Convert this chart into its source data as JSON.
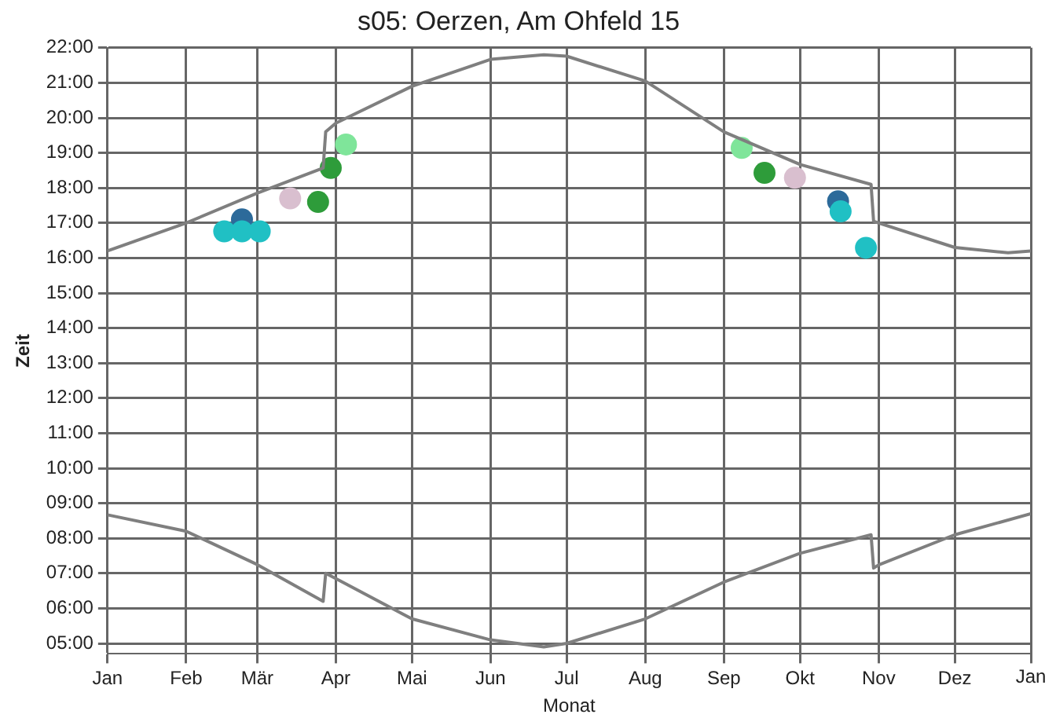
{
  "chart_data": {
    "type": "line",
    "title": "s05: Oerzen, Am Ohfeld 15",
    "xlabel": "Monat",
    "ylabel": "Zeit",
    "grid": true,
    "legend": false,
    "annotations": [
      "Jan"
    ],
    "xlim": [
      "--01-01",
      "--12-31"
    ],
    "xticks": [
      {
        "value": "--01-01",
        "label": "Jan"
      },
      {
        "value": "--02-01",
        "label": "Feb"
      },
      {
        "value": "--03-01",
        "label": "Mär"
      },
      {
        "value": "--04-01",
        "label": "Apr"
      },
      {
        "value": "--05-01",
        "label": "Mai"
      },
      {
        "value": "--06-01",
        "label": "Jun"
      },
      {
        "value": "--07-01",
        "label": "Jul"
      },
      {
        "value": "--08-01",
        "label": "Aug"
      },
      {
        "value": "--09-01",
        "label": "Sep"
      },
      {
        "value": "--10-01",
        "label": "Okt"
      },
      {
        "value": "--11-01",
        "label": "Nov"
      },
      {
        "value": "--12-01",
        "label": "Dez"
      },
      {
        "value": "--12-31",
        "label": null
      }
    ],
    "ylim": [
      4.7,
      22
    ],
    "yticks": [
      {
        "value": 5,
        "label": "05:00"
      },
      {
        "value": 6,
        "label": "06:00"
      },
      {
        "value": 7,
        "label": "07:00"
      },
      {
        "value": 8,
        "label": "08:00"
      },
      {
        "value": 9,
        "label": "09:00"
      },
      {
        "value": 10,
        "label": "10:00"
      },
      {
        "value": 11,
        "label": "11:00"
      },
      {
        "value": 12,
        "label": "12:00"
      },
      {
        "value": 13,
        "label": "13:00"
      },
      {
        "value": 14,
        "label": "14:00"
      },
      {
        "value": 15,
        "label": "15:00"
      },
      {
        "value": 16,
        "label": "16:00"
      },
      {
        "value": 17,
        "label": "17:00"
      },
      {
        "value": 18,
        "label": "18:00"
      },
      {
        "value": 19,
        "label": "19:00"
      },
      {
        "value": 20,
        "label": "20:00"
      },
      {
        "value": 21,
        "label": "21:00"
      },
      {
        "value": 22,
        "label": "22:00"
      }
    ],
    "series": [
      {
        "type": "line",
        "marker": "none",
        "color": "#7f7f7f",
        "x": [
          "--01-01",
          "--02-01",
          "--03-01",
          "--03-27",
          "--03-28",
          "--04-01",
          "--05-01",
          "--06-01",
          "--06-22",
          "--07-01",
          "--08-01",
          "--09-01",
          "--10-01",
          "--10-29",
          "--10-30",
          "--11-01",
          "--12-01",
          "--12-22",
          "--12-31"
        ],
        "values": [
          16.2,
          17.0,
          17.85,
          18.57,
          19.6,
          19.85,
          20.9,
          21.67,
          21.8,
          21.76,
          21.05,
          19.6,
          18.67,
          18.1,
          17.05,
          17.0,
          16.3,
          16.15,
          16.2
        ]
      },
      {
        "type": "line",
        "marker": "none",
        "color": "#7f7f7f",
        "x": [
          "--01-01",
          "--02-01",
          "--03-01",
          "--03-27",
          "--03-28",
          "--04-01",
          "--05-01",
          "--06-01",
          "--06-22",
          "--07-01",
          "--08-01",
          "--09-01",
          "--10-01",
          "--10-29",
          "--10-30",
          "--11-01",
          "--12-01",
          "--12-31"
        ],
        "values": [
          8.67,
          8.2,
          7.25,
          6.2,
          7.0,
          6.85,
          5.7,
          5.1,
          4.9,
          5.0,
          5.7,
          6.75,
          7.57,
          8.1,
          7.15,
          7.24,
          8.1,
          8.7
        ]
      },
      {
        "type": "scatter",
        "marker": "circle",
        "color": "#20c0c4",
        "x": [
          "--02-16",
          "--02-23",
          "--03-02",
          "--10-17",
          "--10-27"
        ],
        "values": [
          16.76,
          16.76,
          16.76,
          17.33,
          16.29
        ]
      },
      {
        "type": "scatter",
        "marker": "circle",
        "color": "#2c6a9a",
        "x": [
          "--02-23",
          "--10-16"
        ],
        "values": [
          17.1,
          17.62
        ]
      },
      {
        "type": "scatter",
        "marker": "circle",
        "color": "#d9bfcf",
        "x": [
          "--03-14",
          "--09-29"
        ],
        "values": [
          17.7,
          18.29
        ]
      },
      {
        "type": "scatter",
        "marker": "circle",
        "color": "#2e9c3a",
        "x": [
          "--03-25",
          "--03-30",
          "--09-17"
        ],
        "values": [
          17.6,
          18.57,
          18.43
        ]
      },
      {
        "type": "scatter",
        "marker": "circle",
        "color": "#7fe59a",
        "x": [
          "--04-05",
          "--09-08"
        ],
        "values": [
          19.24,
          19.14
        ]
      }
    ]
  }
}
